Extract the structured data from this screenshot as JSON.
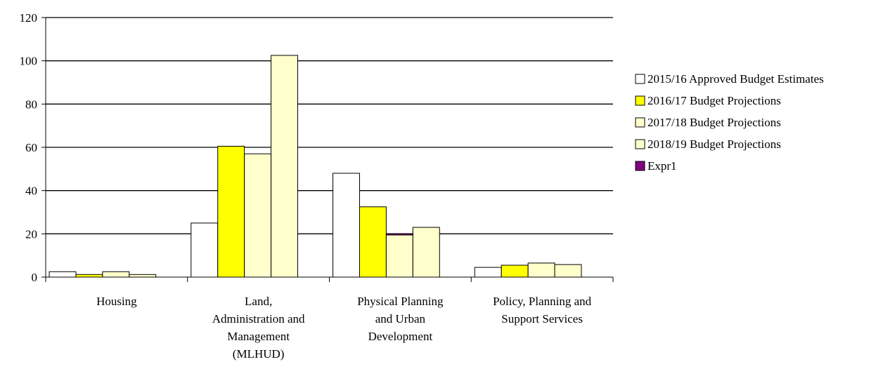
{
  "chart_data": {
    "type": "bar",
    "title": "",
    "xlabel": "",
    "ylabel": "",
    "ylim": [
      0,
      120
    ],
    "yticks": [
      0,
      20,
      40,
      60,
      80,
      100,
      120
    ],
    "grid": true,
    "legend_position": "right",
    "categories": [
      [
        "Housing"
      ],
      [
        "Land,",
        "Administration and",
        "Management",
        "(MLHUD)"
      ],
      [
        "Physical Planning",
        "and Urban",
        "Development"
      ],
      [
        "Policy, Planning and",
        "Support Services"
      ]
    ],
    "series": [
      {
        "name": "2015/16 Approved Budget Estimates",
        "color": "#ffffff",
        "values": [
          2.5,
          25,
          48,
          4.5
        ]
      },
      {
        "name": "2016/17 Budget Projections",
        "color": "#ffff00",
        "values": [
          1.2,
          60.5,
          32.5,
          5.5
        ]
      },
      {
        "name": "2017/18 Budget Projections",
        "color": "#ffffcc",
        "values": [
          2.5,
          57,
          19.5,
          6.5
        ]
      },
      {
        "name": "2018/19 Budget Projections",
        "color": "#ffffcc",
        "values": [
          1.2,
          102.5,
          23,
          5.8
        ]
      },
      {
        "name": "Expr1",
        "color": "#800080",
        "values": [
          0,
          0,
          0.6,
          0
        ]
      }
    ]
  }
}
